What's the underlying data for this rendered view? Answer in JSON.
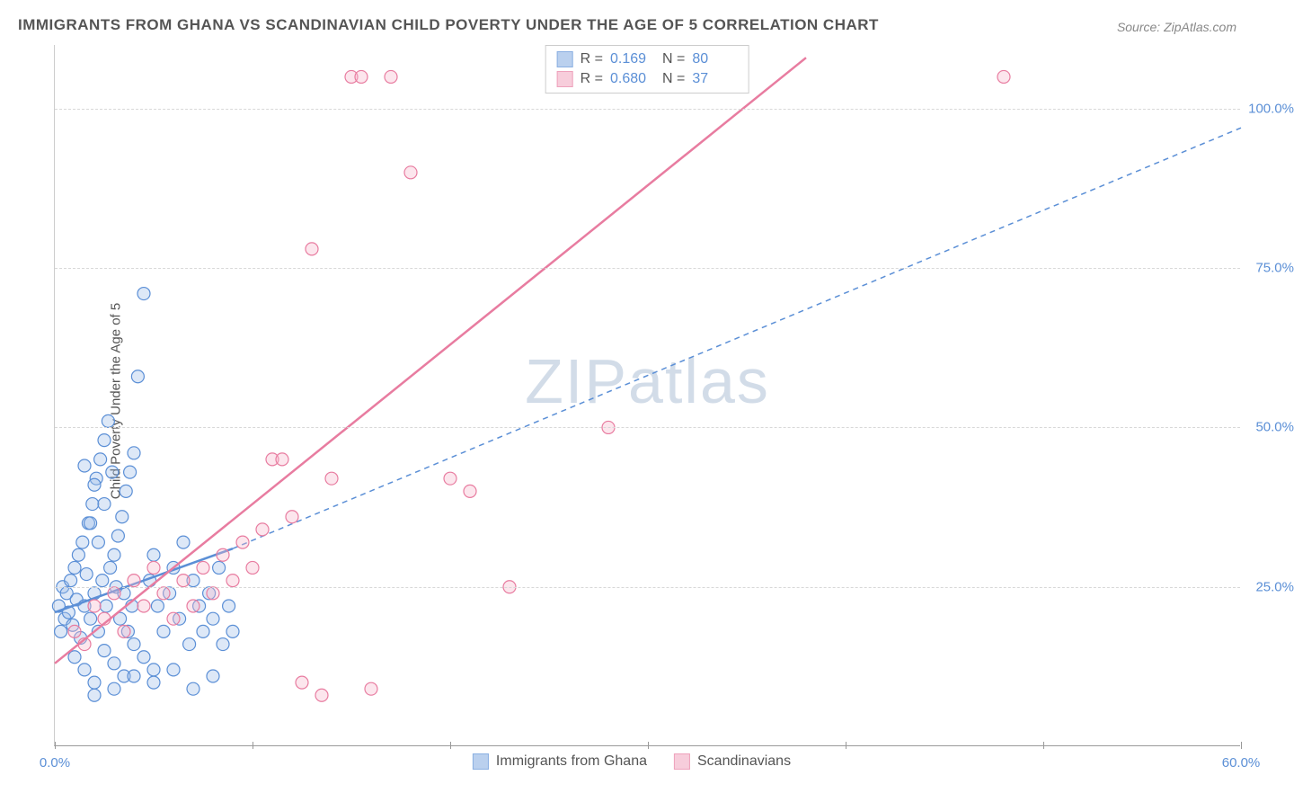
{
  "title": "IMMIGRANTS FROM GHANA VS SCANDINAVIAN CHILD POVERTY UNDER THE AGE OF 5 CORRELATION CHART",
  "source": "Source: ZipAtlas.com",
  "ylabel": "Child Poverty Under the Age of 5",
  "watermark_a": "ZIP",
  "watermark_b": "atlas",
  "chart": {
    "type": "scatter",
    "xlim": [
      0,
      60
    ],
    "ylim": [
      0,
      110
    ],
    "x_ticks": [
      0,
      10,
      20,
      30,
      40,
      50,
      60
    ],
    "x_tick_labels": {
      "0": "0.0%",
      "60": "60.0%"
    },
    "y_gridlines": [
      25,
      50,
      75,
      100
    ],
    "y_tick_labels": {
      "25": "25.0%",
      "50": "50.0%",
      "75": "75.0%",
      "100": "100.0%"
    },
    "background_color": "#ffffff",
    "grid_color": "#d8d8d8",
    "axis_color": "#999999",
    "marker_radius": 7,
    "marker_stroke_width": 1.2,
    "marker_fill_opacity": 0.35,
    "series": [
      {
        "name": "Immigrants from Ghana",
        "color_stroke": "#5b8fd6",
        "color_fill": "#9ebde8",
        "r_label": "R =",
        "r_value": "0.169",
        "n_label": "N =",
        "n_value": "80",
        "trend_solid": {
          "x1": 0,
          "y1": 21,
          "x2": 9,
          "y2": 31,
          "width": 2.5
        },
        "trend_dashed": {
          "x1": 9,
          "y1": 31,
          "x2": 60,
          "y2": 97,
          "width": 1.5,
          "dash": "6,5"
        },
        "points": [
          [
            0.2,
            22
          ],
          [
            0.3,
            18
          ],
          [
            0.4,
            25
          ],
          [
            0.5,
            20
          ],
          [
            0.6,
            24
          ],
          [
            0.7,
            21
          ],
          [
            0.8,
            26
          ],
          [
            0.9,
            19
          ],
          [
            1.0,
            28
          ],
          [
            1.1,
            23
          ],
          [
            1.2,
            30
          ],
          [
            1.3,
            17
          ],
          [
            1.4,
            32
          ],
          [
            1.5,
            22
          ],
          [
            1.6,
            27
          ],
          [
            1.7,
            35
          ],
          [
            1.8,
            20
          ],
          [
            1.9,
            38
          ],
          [
            2.0,
            24
          ],
          [
            2.1,
            42
          ],
          [
            2.2,
            18
          ],
          [
            2.3,
            45
          ],
          [
            2.4,
            26
          ],
          [
            2.5,
            48
          ],
          [
            2.6,
            22
          ],
          [
            2.7,
            51
          ],
          [
            2.8,
            28
          ],
          [
            2.9,
            43
          ],
          [
            3.0,
            30
          ],
          [
            3.1,
            25
          ],
          [
            3.2,
            33
          ],
          [
            3.3,
            20
          ],
          [
            3.4,
            36
          ],
          [
            3.5,
            24
          ],
          [
            3.6,
            40
          ],
          [
            3.7,
            18
          ],
          [
            3.8,
            43
          ],
          [
            3.9,
            22
          ],
          [
            4.0,
            46
          ],
          [
            4.2,
            58
          ],
          [
            4.5,
            71
          ],
          [
            4.8,
            26
          ],
          [
            5.0,
            30
          ],
          [
            5.2,
            22
          ],
          [
            5.5,
            18
          ],
          [
            5.8,
            24
          ],
          [
            6.0,
            28
          ],
          [
            6.3,
            20
          ],
          [
            6.5,
            32
          ],
          [
            6.8,
            16
          ],
          [
            7.0,
            26
          ],
          [
            7.3,
            22
          ],
          [
            7.5,
            18
          ],
          [
            7.8,
            24
          ],
          [
            8.0,
            20
          ],
          [
            8.3,
            28
          ],
          [
            8.5,
            16
          ],
          [
            8.8,
            22
          ],
          [
            9.0,
            18
          ],
          [
            1.0,
            14
          ],
          [
            1.5,
            12
          ],
          [
            2.0,
            10
          ],
          [
            2.5,
            15
          ],
          [
            3.0,
            13
          ],
          [
            3.5,
            11
          ],
          [
            4.0,
            16
          ],
          [
            4.5,
            14
          ],
          [
            5.0,
            12
          ],
          [
            2.0,
            8
          ],
          [
            3.0,
            9
          ],
          [
            4.0,
            11
          ],
          [
            5.0,
            10
          ],
          [
            6.0,
            12
          ],
          [
            7.0,
            9
          ],
          [
            8.0,
            11
          ],
          [
            1.5,
            44
          ],
          [
            2.0,
            41
          ],
          [
            2.5,
            38
          ],
          [
            1.8,
            35
          ],
          [
            2.2,
            32
          ]
        ]
      },
      {
        "name": "Scandinavians",
        "color_stroke": "#e87ca0",
        "color_fill": "#f5b8cc",
        "r_label": "R =",
        "r_value": "0.680",
        "n_label": "N =",
        "n_value": "37",
        "trend_solid": {
          "x1": 0,
          "y1": 13,
          "x2": 38,
          "y2": 108,
          "width": 2.5
        },
        "points": [
          [
            1.0,
            18
          ],
          [
            1.5,
            16
          ],
          [
            2.0,
            22
          ],
          [
            2.5,
            20
          ],
          [
            3.0,
            24
          ],
          [
            3.5,
            18
          ],
          [
            4.0,
            26
          ],
          [
            4.5,
            22
          ],
          [
            5.0,
            28
          ],
          [
            5.5,
            24
          ],
          [
            6.0,
            20
          ],
          [
            6.5,
            26
          ],
          [
            7.0,
            22
          ],
          [
            7.5,
            28
          ],
          [
            8.0,
            24
          ],
          [
            8.5,
            30
          ],
          [
            9.0,
            26
          ],
          [
            9.5,
            32
          ],
          [
            10.0,
            28
          ],
          [
            11.0,
            45
          ],
          [
            11.5,
            45
          ],
          [
            12.0,
            36
          ],
          [
            13.0,
            78
          ],
          [
            14.0,
            42
          ],
          [
            15.0,
            105
          ],
          [
            15.5,
            105
          ],
          [
            16.0,
            9
          ],
          [
            17.0,
            105
          ],
          [
            18.0,
            90
          ],
          [
            20.0,
            42
          ],
          [
            21.0,
            40
          ],
          [
            23.0,
            25
          ],
          [
            28.0,
            50
          ],
          [
            12.5,
            10
          ],
          [
            13.5,
            8
          ],
          [
            48.0,
            105
          ],
          [
            10.5,
            34
          ]
        ]
      }
    ]
  },
  "legend_bottom": [
    {
      "label": "Immigrants from Ghana",
      "stroke": "#5b8fd6",
      "fill": "#9ebde8"
    },
    {
      "label": "Scandinavians",
      "stroke": "#e87ca0",
      "fill": "#f5b8cc"
    }
  ]
}
